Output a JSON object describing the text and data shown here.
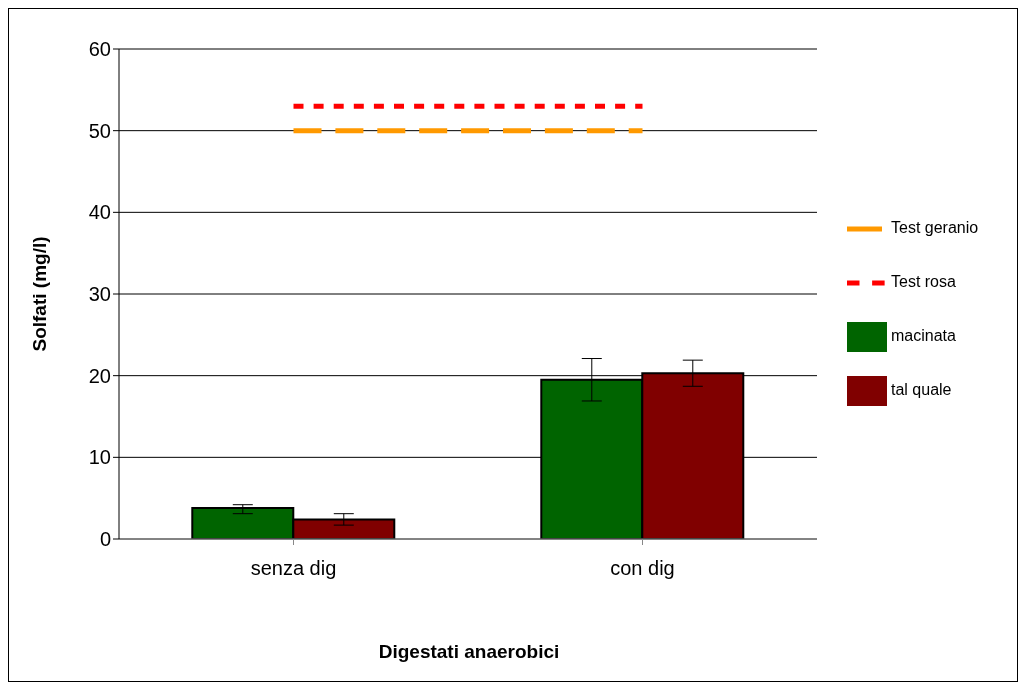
{
  "chart_data": {
    "type": "bar",
    "xlabel": "Digestati anaerobici",
    "ylabel": "Solfati (mg/l)",
    "categories": [
      "senza dig",
      "con dig"
    ],
    "series": [
      {
        "name": "macinata",
        "color": "#006400",
        "values": [
          3.8,
          19.5
        ],
        "errors": [
          [
            3.1,
            4.2
          ],
          [
            16.9,
            22.1
          ]
        ]
      },
      {
        "name": "tal quale",
        "color": "#800000",
        "values": [
          2.4,
          20.3
        ],
        "errors": [
          [
            1.7,
            3.1
          ],
          [
            18.7,
            21.9
          ]
        ]
      },
      {
        "name": "Test geranio",
        "type": "line",
        "color": "#ff9900",
        "values": [
          50,
          50
        ],
        "line_style": "dashed"
      },
      {
        "name": "Test rosa",
        "type": "line",
        "color": "#ff0000",
        "values": [
          53,
          53
        ],
        "line_style": "dotted"
      }
    ],
    "ylim": [
      0,
      60
    ],
    "yticks": [
      0,
      10,
      20,
      30,
      40,
      50,
      60
    ],
    "grid": "y",
    "legend": "right",
    "marker": "none"
  }
}
